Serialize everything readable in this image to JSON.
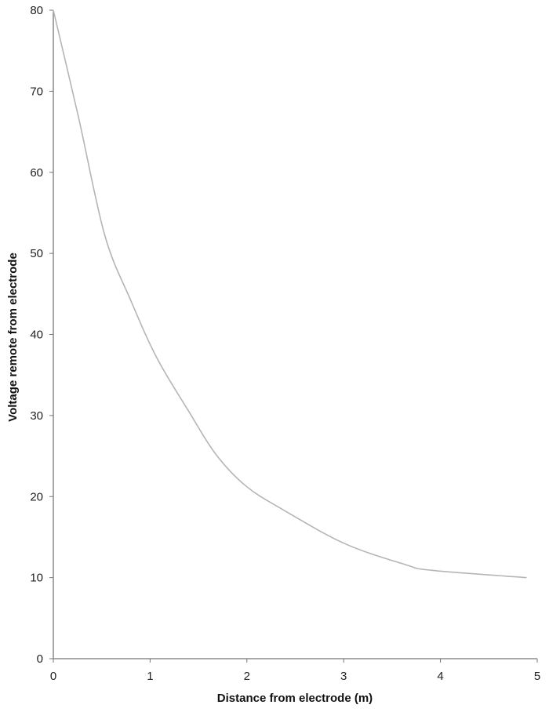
{
  "chart_data": {
    "type": "line",
    "title": "",
    "xlabel": "Distance from electrode (m)",
    "ylabel": "Voltage remote from electrode",
    "xlim": [
      0,
      5
    ],
    "ylim": [
      0,
      80
    ],
    "xticks": [
      "0",
      "1",
      "2",
      "3",
      "4",
      "5"
    ],
    "yticks": [
      "0",
      "10",
      "20",
      "30",
      "40",
      "50",
      "60",
      "70",
      "80"
    ],
    "grid": false,
    "line_color": "#b5b5b5",
    "axis_color": "#777777",
    "series": [
      {
        "x": [
          0,
          0.26,
          0.53,
          0.8,
          1.07,
          1.4,
          1.68,
          1.99,
          2.37,
          3.01,
          3.64,
          3.91,
          4.89
        ],
        "y": [
          80,
          66.8,
          52.3,
          44.2,
          37.1,
          30.5,
          25.2,
          21.3,
          18.4,
          14.2,
          11.6,
          10.9,
          10.0
        ]
      }
    ]
  }
}
